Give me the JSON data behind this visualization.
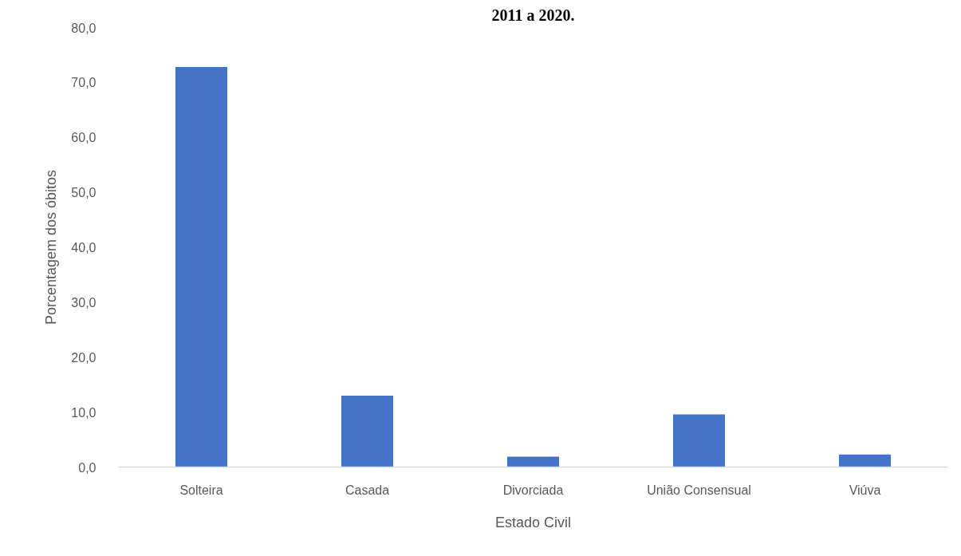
{
  "chart_data": {
    "type": "bar",
    "title": "2011 a 2020.",
    "xlabel": "Estado Civil",
    "ylabel": "Porcentagem dos óbitos",
    "categories": [
      "Solteira",
      "Casada",
      "Divorciada",
      "União Consensual",
      "Viúva"
    ],
    "values": [
      72.8,
      13.0,
      1.9,
      9.6,
      2.3
    ],
    "color": "#4472c4",
    "ylim": [
      0,
      80
    ],
    "yticks": [
      {
        "value": 0,
        "label": "0,0"
      },
      {
        "value": 10,
        "label": "10,0"
      },
      {
        "value": 20,
        "label": "20,0"
      },
      {
        "value": 30,
        "label": "30,0"
      },
      {
        "value": 40,
        "label": "40,0"
      },
      {
        "value": 50,
        "label": "50,0"
      },
      {
        "value": 60,
        "label": "60,0"
      },
      {
        "value": 70,
        "label": "70,0"
      },
      {
        "value": 80,
        "label": "80,0"
      }
    ],
    "grid": false
  }
}
